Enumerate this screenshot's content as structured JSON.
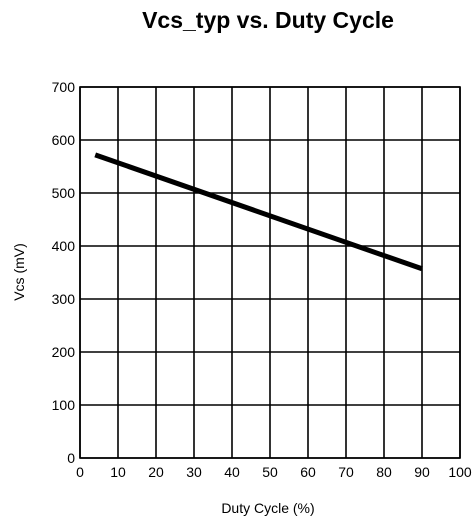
{
  "chart_data": {
    "type": "line",
    "title": "Vcs_typ vs. Duty Cycle",
    "xlabel": "Duty Cycle (%)",
    "ylabel": "Vcs (mV)",
    "xlim": [
      0,
      100
    ],
    "ylim": [
      0,
      700
    ],
    "xticks": [
      0,
      10,
      20,
      30,
      40,
      50,
      60,
      70,
      80,
      90,
      100
    ],
    "yticks": [
      0,
      100,
      200,
      300,
      400,
      500,
      600,
      700
    ],
    "grid": true,
    "legend": "none",
    "series": [
      {
        "color": "#000000",
        "x": [
          4,
          90
        ],
        "y": [
          572,
          357
        ]
      }
    ]
  }
}
